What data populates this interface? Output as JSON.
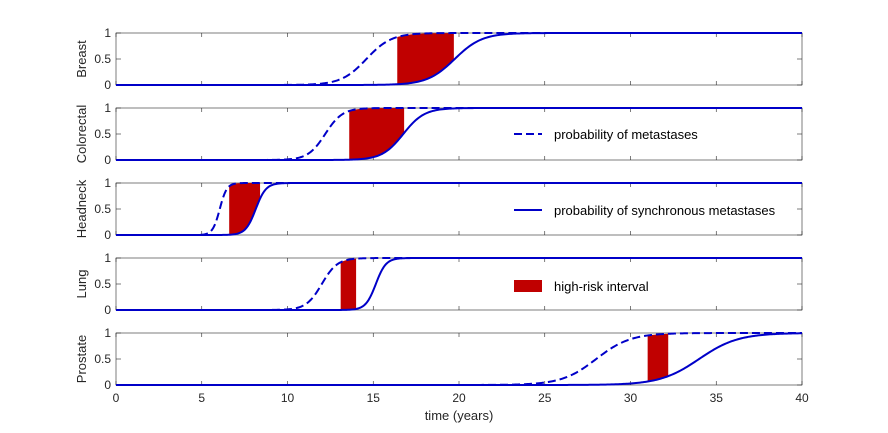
{
  "chart_data": {
    "type": "line",
    "xlabel": "time (years)",
    "xlim": [
      0,
      40
    ],
    "ylim": [
      0,
      1
    ],
    "x_ticks": [
      "0",
      "5",
      "10",
      "15",
      "20",
      "25",
      "30",
      "35",
      "40"
    ],
    "y_ticks": [
      "0",
      "0.5",
      "1"
    ],
    "colors": {
      "line": "#0000c8",
      "interval": "#c00000"
    },
    "legend": {
      "placement": "right",
      "entries": [
        {
          "label": "probability of metastases",
          "style": "dashed"
        },
        {
          "label": "probability of synchronous metastases",
          "style": "solid"
        },
        {
          "label": "high-risk interval",
          "style": "patch"
        }
      ]
    },
    "panels": [
      {
        "ylabel": "Breast",
        "metastases": {
          "t10": 13.0,
          "t90": 16.2
        },
        "synchronous": {
          "t10": 18.0,
          "t90": 21.5
        },
        "interval": [
          16.4,
          19.7
        ]
      },
      {
        "ylabel": "Colorectal",
        "metastases": {
          "t10": 11.1,
          "t90": 13.3
        },
        "synchronous": {
          "t10": 15.4,
          "t90": 18.1
        },
        "interval": [
          13.6,
          16.8
        ]
      },
      {
        "ylabel": "Headneck",
        "metastases": {
          "t10": 5.6,
          "t90": 6.5
        },
        "synchronous": {
          "t10": 7.5,
          "t90": 8.8
        },
        "interval": [
          6.6,
          8.4
        ]
      },
      {
        "ylabel": "Lung",
        "metastases": {
          "t10": 11.0,
          "t90": 13.0
        },
        "synchronous": {
          "t10": 14.5,
          "t90": 15.8
        },
        "interval": [
          13.1,
          14.0
        ]
      },
      {
        "ylabel": "Prostate",
        "metastases": {
          "t10": 25.8,
          "t90": 30.2
        },
        "synchronous": {
          "t10": 31.5,
          "t90": 36.5
        },
        "interval": [
          31.0,
          32.2
        ]
      }
    ]
  }
}
